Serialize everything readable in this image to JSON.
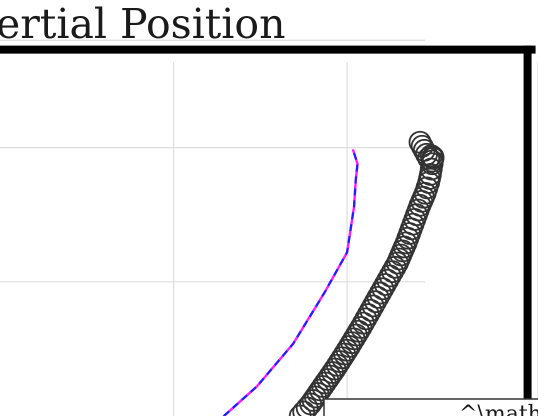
{
  "chart_data": {
    "type": "line",
    "title": "ertial Position",
    "xlabel": "",
    "ylabel": "",
    "xlim": [
      0,
      31
    ],
    "ylim": [
      0,
      31
    ],
    "grid": true,
    "x_gridlines": [
      10,
      20,
      31
    ],
    "y_gridlines": [
      10,
      20,
      28
    ],
    "frame_lines": {
      "top_y": 27.3,
      "right_x": 30.4
    },
    "series": [
      {
        "style": "dashed-line",
        "colors": [
          "#ff1aff",
          "#2020ff"
        ],
        "x": [
          12.9,
          14.8,
          16.9,
          18.7,
          20.0,
          20.4,
          20.5,
          20.6,
          20.35
        ],
        "y": [
          0.0,
          2.2,
          5.4,
          9.2,
          12.2,
          15.6,
          17.6,
          18.8,
          19.8
        ]
      },
      {
        "style": "circle-markers",
        "color": "#333333",
        "x": [
          17.3,
          17.9,
          18.6,
          19.3,
          20.0,
          20.8,
          21.5,
          22.2,
          22.9,
          23.4,
          23.8,
          24.2,
          24.5,
          24.7,
          24.8,
          24.85,
          24.9,
          24.9,
          24.95,
          24.95,
          24.85,
          24.7,
          24.2
        ],
        "y": [
          0.0,
          0.9,
          2.2,
          3.5,
          4.9,
          6.6,
          8.2,
          9.8,
          11.4,
          12.9,
          14.3,
          15.7,
          16.6,
          17.4,
          18.0,
          18.4,
          18.8,
          19.0,
          19.2,
          19.3,
          19.4,
          19.2,
          20.4
        ]
      }
    ],
    "legend": {
      "position": "bottom-right",
      "label": "^\\mathcal{I}"
    }
  }
}
